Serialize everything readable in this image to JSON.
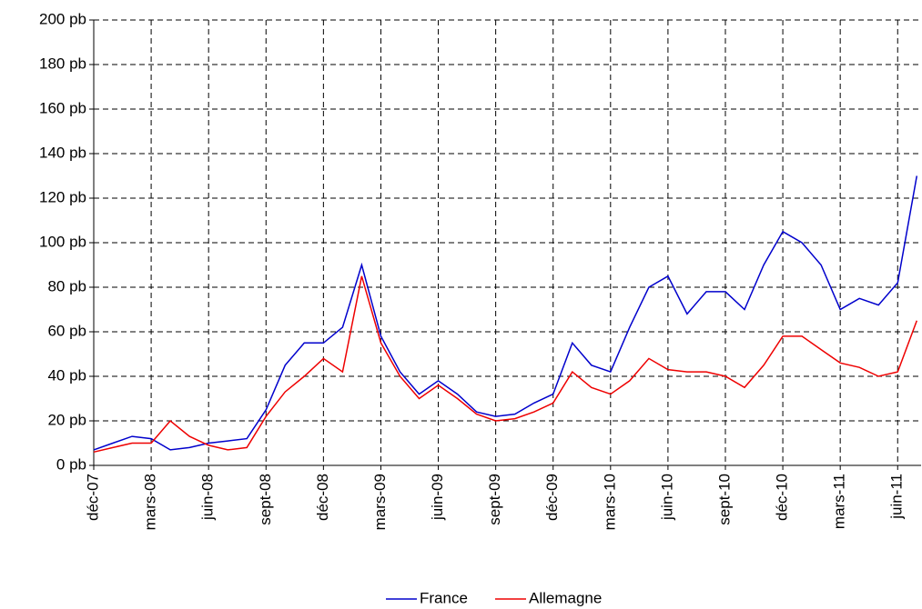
{
  "chart_data": {
    "type": "line",
    "categories": [
      "déc-07",
      null,
      null,
      "mars-08",
      null,
      null,
      "juin-08",
      null,
      null,
      "sept-08",
      null,
      null,
      "déc-08",
      null,
      null,
      "mars-09",
      null,
      null,
      "juin-09",
      null,
      null,
      "sept-09",
      null,
      null,
      "déc-09",
      null,
      null,
      "mars-10",
      null,
      null,
      "juin-10",
      null,
      null,
      "sept-10",
      null,
      null,
      "déc-10",
      null,
      null,
      "mars-11",
      null,
      null,
      "juin-11",
      null
    ],
    "series": [
      {
        "name": "France",
        "color": "#0000cc",
        "values": [
          7,
          10,
          13,
          12,
          7,
          8,
          10,
          11,
          12,
          25,
          45,
          55,
          55,
          62,
          90,
          58,
          42,
          32,
          38,
          32,
          24,
          22,
          23,
          28,
          32,
          55,
          45,
          42,
          62,
          80,
          85,
          68,
          78,
          78,
          70,
          90,
          105,
          100,
          90,
          70,
          75,
          72,
          82,
          130
        ]
      },
      {
        "name": "Allemagne",
        "color": "#ee0000",
        "values": [
          6,
          8,
          10,
          10,
          20,
          13,
          9,
          7,
          8,
          22,
          33,
          40,
          48,
          42,
          85,
          55,
          40,
          30,
          36,
          30,
          23,
          20,
          21,
          24,
          28,
          42,
          35,
          32,
          38,
          48,
          43,
          42,
          42,
          40,
          35,
          45,
          58,
          58,
          52,
          46,
          44,
          40,
          42,
          65
        ]
      }
    ],
    "ylim": [
      0,
      200
    ],
    "yticks": [
      {
        "value": 0,
        "label": "0 pb"
      },
      {
        "value": 20,
        "label": "20 pb"
      },
      {
        "value": 40,
        "label": "40 pb"
      },
      {
        "value": 60,
        "label": "60 pb"
      },
      {
        "value": 80,
        "label": "80 pb"
      },
      {
        "value": 100,
        "label": "100 pb"
      },
      {
        "value": 120,
        "label": "120 pb"
      },
      {
        "value": 140,
        "label": "140 pb"
      },
      {
        "value": 160,
        "label": "160 pb"
      },
      {
        "value": 180,
        "label": "180 pb"
      },
      {
        "value": 200,
        "label": "200 pb"
      }
    ],
    "grid": true,
    "legend": "bottom"
  }
}
